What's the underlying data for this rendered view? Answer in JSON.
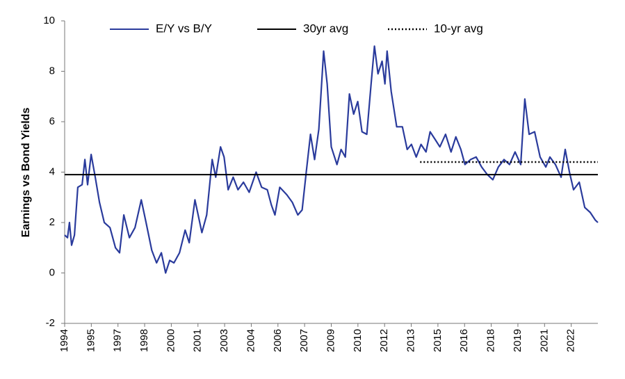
{
  "chart_data": {
    "type": "line",
    "y_label": "Earnings vs Bond Yields",
    "xlim": [
      1994,
      2024
    ],
    "xticks": [
      {
        "value": 1994,
        "label": "1994"
      },
      {
        "value": 1995.5,
        "label": "1995"
      },
      {
        "value": 1997,
        "label": "1997"
      },
      {
        "value": 1998.5,
        "label": "1998"
      },
      {
        "value": 2000,
        "label": "2000"
      },
      {
        "value": 2001.5,
        "label": "2001"
      },
      {
        "value": 2003,
        "label": "2003"
      },
      {
        "value": 2004.5,
        "label": "2004"
      },
      {
        "value": 2006,
        "label": "2006"
      },
      {
        "value": 2007.5,
        "label": "2007"
      },
      {
        "value": 2009,
        "label": "2009"
      },
      {
        "value": 2010.5,
        "label": "2010"
      },
      {
        "value": 2012,
        "label": "2012"
      },
      {
        "value": 2013.5,
        "label": "2013"
      },
      {
        "value": 2015,
        "label": "2015"
      },
      {
        "value": 2016.5,
        "label": "2016"
      },
      {
        "value": 2018,
        "label": "2018"
      },
      {
        "value": 2019.5,
        "label": "2019"
      },
      {
        "value": 2021,
        "label": "2021"
      },
      {
        "value": 2022.5,
        "label": "2022"
      }
    ],
    "ylim": [
      -2,
      10
    ],
    "yticks": [
      -2,
      0,
      2,
      4,
      6,
      8,
      10
    ],
    "grid": false,
    "legend": "top",
    "series": [
      {
        "name": "E/Y vs B/Y",
        "color": "#2a3b9c",
        "style": "solid",
        "x": [
          1994,
          1994.16,
          1994.27,
          1994.39,
          1994.55,
          1994.74,
          1994.98,
          1995.14,
          1995.29,
          1995.49,
          1995.72,
          1995.96,
          1996.23,
          1996.55,
          1996.86,
          1997.09,
          1997.33,
          1997.64,
          1997.96,
          1998.31,
          1998.58,
          1998.9,
          1999.17,
          1999.44,
          1999.68,
          1999.91,
          2000.15,
          2000.46,
          2000.78,
          2001.01,
          2001.33,
          2001.72,
          2001.99,
          2002.3,
          2002.5,
          2002.77,
          2002.97,
          2003.2,
          2003.48,
          2003.75,
          2004.06,
          2004.38,
          2004.77,
          2005.08,
          2005.4,
          2005.63,
          2005.83,
          2006.1,
          2006.5,
          2006.81,
          2007.12,
          2007.36,
          2007.59,
          2007.83,
          2008.06,
          2008.3,
          2008.57,
          2008.77,
          2009,
          2009.32,
          2009.55,
          2009.79,
          2010.02,
          2010.26,
          2010.49,
          2010.73,
          2011,
          2011.24,
          2011.43,
          2011.63,
          2011.86,
          2012.02,
          2012.14,
          2012.37,
          2012.68,
          2013,
          2013.27,
          2013.51,
          2013.78,
          2014.05,
          2014.33,
          2014.56,
          2014.84,
          2015.11,
          2015.43,
          2015.74,
          2016.01,
          2016.29,
          2016.52,
          2016.84,
          2017.15,
          2017.46,
          2017.78,
          2018.09,
          2018.4,
          2018.72,
          2019.03,
          2019.34,
          2019.66,
          2019.89,
          2020.13,
          2020.44,
          2020.75,
          2021.07,
          2021.3,
          2021.61,
          2021.93,
          2022.16,
          2022.4,
          2022.63,
          2022.95,
          2023.26,
          2023.57,
          2023.85,
          2024
        ],
        "values": [
          1.5,
          1.4,
          2.0,
          1.1,
          1.5,
          3.4,
          3.5,
          4.5,
          3.5,
          4.7,
          3.8,
          2.8,
          2.0,
          1.8,
          1.0,
          0.8,
          2.3,
          1.4,
          1.8,
          2.9,
          2.0,
          0.9,
          0.4,
          0.8,
          0.0,
          0.5,
          0.4,
          0.8,
          1.7,
          1.2,
          2.9,
          1.6,
          2.3,
          4.5,
          3.8,
          5.0,
          4.6,
          3.3,
          3.8,
          3.3,
          3.6,
          3.2,
          4.0,
          3.4,
          3.3,
          2.7,
          2.3,
          3.4,
          3.1,
          2.8,
          2.3,
          2.5,
          4.0,
          5.5,
          4.5,
          5.7,
          8.8,
          7.5,
          5.0,
          4.3,
          4.9,
          4.6,
          7.1,
          6.3,
          6.8,
          5.6,
          5.5,
          7.5,
          9.0,
          7.9,
          8.4,
          7.5,
          8.8,
          7.2,
          5.8,
          5.8,
          4.9,
          5.1,
          4.6,
          5.1,
          4.8,
          5.6,
          5.3,
          5.0,
          5.5,
          4.8,
          5.4,
          4.9,
          4.3,
          4.5,
          4.6,
          4.2,
          3.9,
          3.7,
          4.2,
          4.5,
          4.3,
          4.8,
          4.3,
          6.9,
          5.5,
          5.6,
          4.6,
          4.2,
          4.6,
          4.3,
          3.8,
          4.9,
          4.0,
          3.3,
          3.6,
          2.6,
          2.4,
          2.1,
          2.0
        ]
      },
      {
        "name": "30yr avg",
        "color": "#000000",
        "style": "solid",
        "x": [
          1994,
          2024
        ],
        "values": [
          3.9,
          3.9
        ]
      },
      {
        "name": "10-yr avg",
        "color": "#000000",
        "style": "dotted",
        "x": [
          2014,
          2024
        ],
        "values": [
          4.4,
          4.4
        ]
      }
    ]
  }
}
